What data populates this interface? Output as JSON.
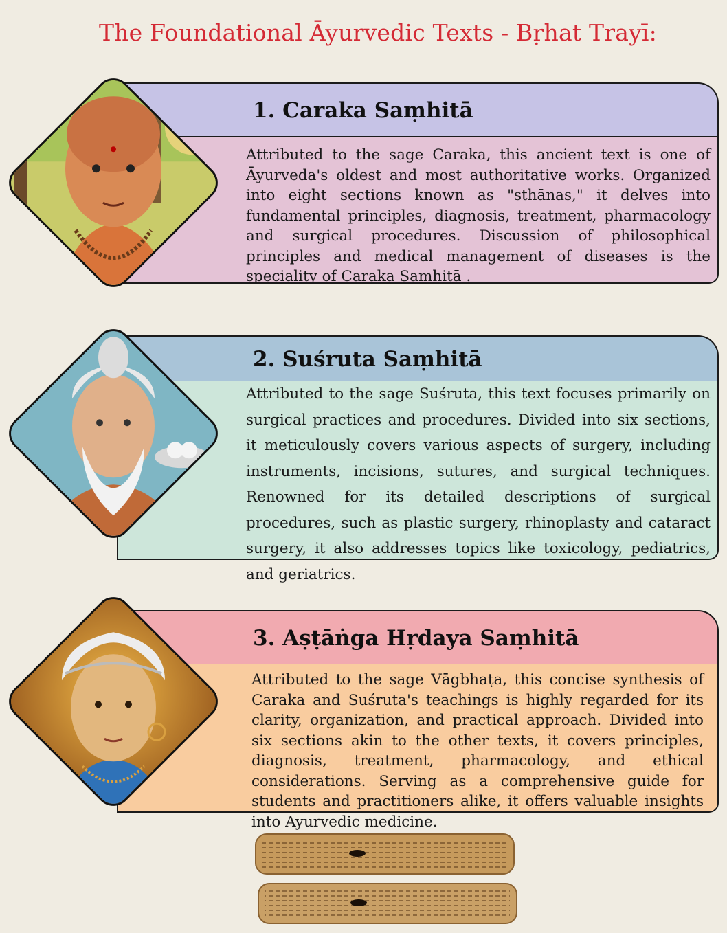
{
  "page": {
    "title": "The Foundational Āyurvedic Texts - Bṛhat Trayī:"
  },
  "cards": [
    {
      "title": "1. Caraka Saṃhitā",
      "portrait_icon": "sage-caraka-portrait",
      "body": "Attributed to the sage Caraka, this ancient text is one of Āyurveda's oldest and most authoritative works. Organized into eight sections known as \"sthānas,\" it delves into fundamental principles, diagnosis, treatment, pharmacology and surgical procedures. Discussion of philosophical principles and medical management of diseases is the speciality of Caraka Saṃhitā .",
      "header_color": "#c6c3e6",
      "body_color": "#e4c3d6"
    },
    {
      "title": "2. Suśruta Saṃhitā",
      "portrait_icon": "sage-susruta-portrait",
      "body": "Attributed to the sage Suśruta, this text focuses primarily on surgical practices and procedures. Divided into six sections, it meticulously covers various aspects of surgery, including instruments, incisions, sutures, and surgical techniques. Renowned for its detailed descriptions of surgical procedures, such as plastic surgery, rhinoplasty and cataract surgery, it also addresses topics like toxicology, pediatrics, and geriatrics.",
      "header_color": "#a9c4d8",
      "body_color": "#cde6da"
    },
    {
      "title": "3. Aṣṭāṅga Hṛdaya Saṃhitā",
      "portrait_icon": "sage-vagbhata-portrait",
      "body": "Attributed to the sage Vāgbhaṭa, this concise synthesis of Caraka and Suśruta's teachings is highly regarded for its clarity, organization, and practical approach. Divided into six sections akin to the other texts, it covers principles, diagnosis, treatment, pharmacology, and ethical considerations. Serving as a comprehensive guide for students and practitioners alike, it offers valuable insights into Ayurvedic medicine.",
      "header_color": "#f1aab0",
      "body_color": "#f9cc9f"
    }
  ],
  "footer": {
    "image_icon": "palm-leaf-manuscript-icon"
  }
}
